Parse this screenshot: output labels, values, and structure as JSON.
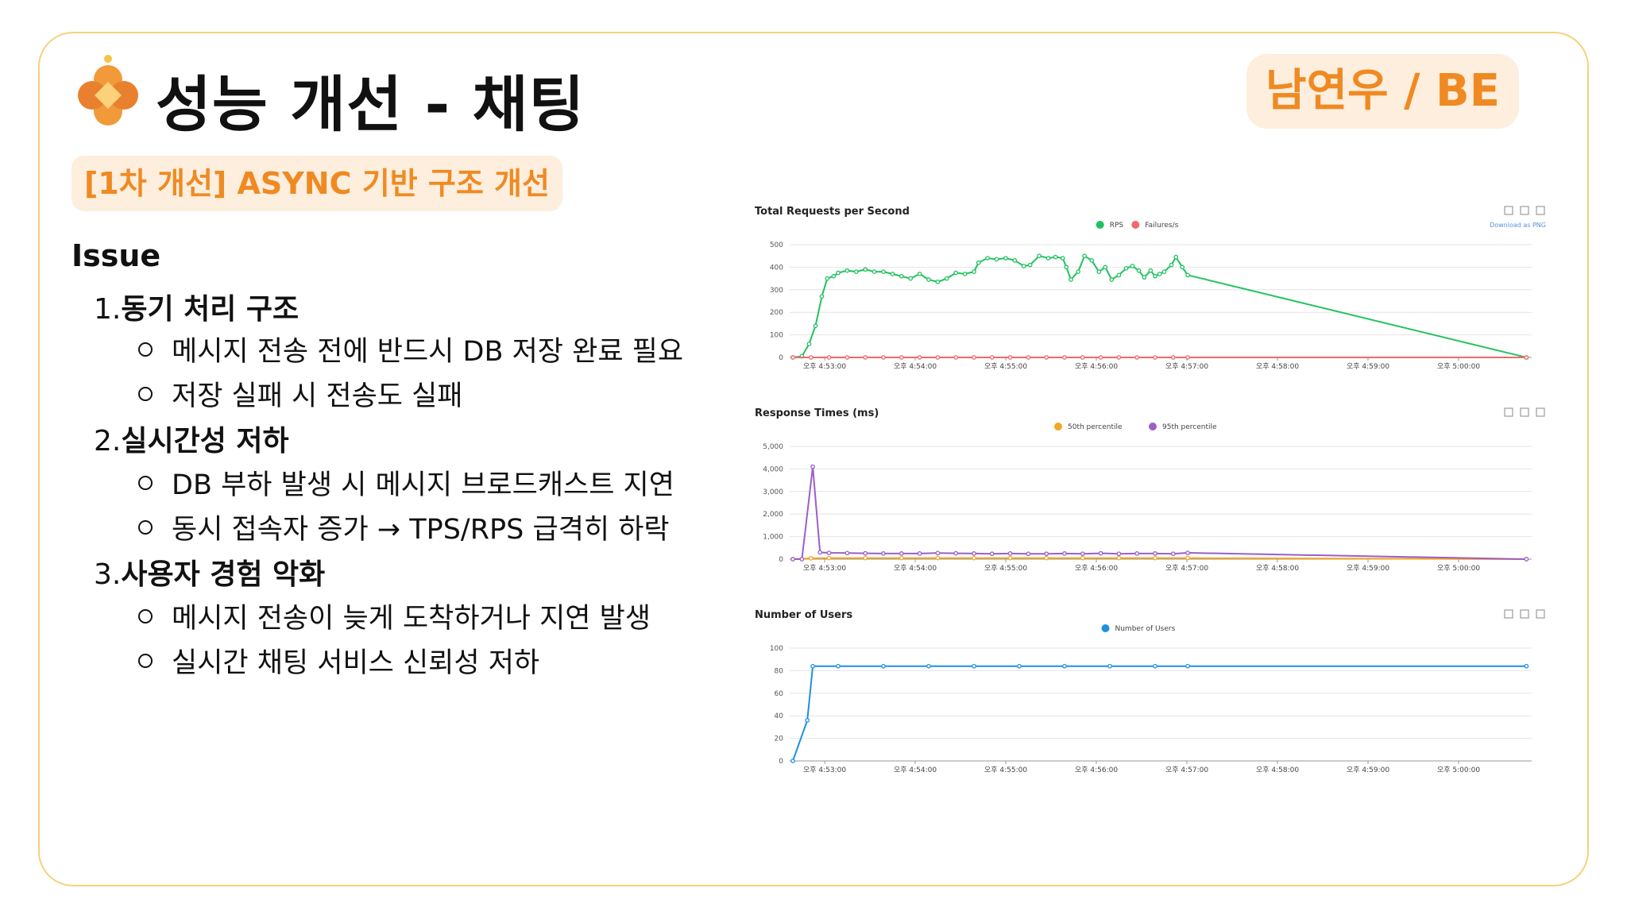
{
  "header": {
    "title": "성능 개선 - 채팅",
    "author": "남연우 / BE"
  },
  "subtitle": "[1차 개선] ASYNC 기반 구조 개선",
  "issue": {
    "heading": "Issue",
    "items": [
      {
        "num": "1.",
        "text": "동기 처리 구조",
        "bullets": [
          "메시지 전송 전에 반드시 DB 저장 완료 필요",
          "저장 실패 시 전송도 실패"
        ]
      },
      {
        "num": "2.",
        "text": "실시간성 저하",
        "bullets": [
          "DB 부하 발생 시 메시지 브로드캐스트 지연",
          "동시 접속자 증가 → TPS/RPS 급격히 하락"
        ]
      },
      {
        "num": "3.",
        "text": "사용자 경험 악화",
        "bullets": [
          "메시지 전송이 늦게 도착하거나 지연 발생",
          "실시간 채팅 서비스 신뢰성 저하"
        ]
      }
    ]
  },
  "chart_data": [
    {
      "type": "line",
      "title": "Total Requests per Second",
      "download_label": "Download as PNG",
      "x": [
        "오후 4:53:00",
        "오후 4:54:00",
        "오후 4:55:00",
        "오후 4:56:00",
        "오후 4:57:00",
        "오후 4:58:00",
        "오후 4:59:00",
        "오후 5:00:00"
      ],
      "ylim": [
        0,
        500
      ],
      "yticks": [
        0,
        100,
        200,
        300,
        400,
        500
      ],
      "series": [
        {
          "name": "RPS",
          "color": "#21c25e",
          "points": [
            [
              0,
              0
            ],
            [
              0.1,
              5
            ],
            [
              0.18,
              60
            ],
            [
              0.25,
              140
            ],
            [
              0.32,
              270
            ],
            [
              0.38,
              350
            ],
            [
              0.45,
              360
            ],
            [
              0.5,
              375
            ],
            [
              0.6,
              385
            ],
            [
              0.7,
              380
            ],
            [
              0.8,
              390
            ],
            [
              0.9,
              380
            ],
            [
              1.0,
              380
            ],
            [
              1.1,
              370
            ],
            [
              1.2,
              360
            ],
            [
              1.3,
              350
            ],
            [
              1.4,
              370
            ],
            [
              1.5,
              345
            ],
            [
              1.6,
              335
            ],
            [
              1.7,
              350
            ],
            [
              1.8,
              375
            ],
            [
              1.9,
              370
            ],
            [
              2.0,
              380
            ],
            [
              2.05,
              420
            ],
            [
              2.15,
              440
            ],
            [
              2.25,
              435
            ],
            [
              2.35,
              440
            ],
            [
              2.45,
              430
            ],
            [
              2.55,
              405
            ],
            [
              2.62,
              410
            ],
            [
              2.72,
              450
            ],
            [
              2.82,
              440
            ],
            [
              2.9,
              445
            ],
            [
              2.98,
              440
            ],
            [
              3.02,
              400
            ],
            [
              3.07,
              345
            ],
            [
              3.15,
              380
            ],
            [
              3.22,
              450
            ],
            [
              3.3,
              430
            ],
            [
              3.38,
              380
            ],
            [
              3.45,
              400
            ],
            [
              3.52,
              345
            ],
            [
              3.6,
              365
            ],
            [
              3.68,
              395
            ],
            [
              3.75,
              405
            ],
            [
              3.82,
              385
            ],
            [
              3.88,
              355
            ],
            [
              3.95,
              385
            ],
            [
              4.0,
              360
            ],
            [
              4.05,
              370
            ],
            [
              4.1,
              380
            ],
            [
              4.18,
              410
            ],
            [
              4.23,
              445
            ],
            [
              4.3,
              400
            ],
            [
              4.36,
              365
            ],
            [
              8.1,
              0
            ]
          ]
        },
        {
          "name": "Failures/s",
          "color": "#ef6a6a",
          "points": [
            [
              0,
              0
            ],
            [
              0.2,
              0
            ],
            [
              0.4,
              0
            ],
            [
              0.6,
              0
            ],
            [
              0.8,
              0
            ],
            [
              1.0,
              0
            ],
            [
              1.2,
              0
            ],
            [
              1.4,
              0
            ],
            [
              1.6,
              0
            ],
            [
              1.8,
              0
            ],
            [
              2.0,
              0
            ],
            [
              2.2,
              0
            ],
            [
              2.4,
              0
            ],
            [
              2.6,
              0
            ],
            [
              2.8,
              0
            ],
            [
              3.0,
              0
            ],
            [
              3.2,
              0
            ],
            [
              3.4,
              0
            ],
            [
              3.6,
              0
            ],
            [
              3.8,
              0
            ],
            [
              4.0,
              0
            ],
            [
              4.2,
              0
            ],
            [
              4.36,
              0
            ],
            [
              8.1,
              0
            ]
          ]
        }
      ]
    },
    {
      "type": "line",
      "title": "Response Times (ms)",
      "x": [
        "오후 4:53:00",
        "오후 4:54:00",
        "오후 4:55:00",
        "오후 4:56:00",
        "오후 4:57:00",
        "오후 4:58:00",
        "오후 4:59:00",
        "오후 5:00:00"
      ],
      "ylim": [
        0,
        5000
      ],
      "yticks": [
        0,
        1000,
        2000,
        3000,
        4000,
        5000
      ],
      "series": [
        {
          "name": "50th percentile",
          "color": "#f5a623",
          "points": [
            [
              0,
              0
            ],
            [
              0.2,
              40
            ],
            [
              0.4,
              50
            ],
            [
              0.8,
              50
            ],
            [
              1.2,
              50
            ],
            [
              1.6,
              50
            ],
            [
              2.0,
              50
            ],
            [
              2.4,
              50
            ],
            [
              2.8,
              50
            ],
            [
              3.2,
              50
            ],
            [
              3.6,
              50
            ],
            [
              4.0,
              50
            ],
            [
              4.36,
              50
            ],
            [
              8.1,
              0
            ]
          ]
        },
        {
          "name": "95th percentile",
          "color": "#9b5fc7",
          "points": [
            [
              0,
              0
            ],
            [
              0.1,
              0
            ],
            [
              0.22,
              4100
            ],
            [
              0.3,
              300
            ],
            [
              0.4,
              280
            ],
            [
              0.6,
              270
            ],
            [
              0.8,
              260
            ],
            [
              1.0,
              250
            ],
            [
              1.2,
              250
            ],
            [
              1.4,
              250
            ],
            [
              1.6,
              270
            ],
            [
              1.8,
              260
            ],
            [
              2.0,
              250
            ],
            [
              2.2,
              240
            ],
            [
              2.4,
              250
            ],
            [
              2.6,
              240
            ],
            [
              2.8,
              240
            ],
            [
              3.0,
              250
            ],
            [
              3.2,
              240
            ],
            [
              3.4,
              260
            ],
            [
              3.6,
              240
            ],
            [
              3.8,
              250
            ],
            [
              4.0,
              250
            ],
            [
              4.2,
              240
            ],
            [
              4.36,
              280
            ],
            [
              8.1,
              0
            ]
          ]
        }
      ]
    },
    {
      "type": "line",
      "title": "Number of Users",
      "x": [
        "오후 4:53:00",
        "오후 4:54:00",
        "오후 4:55:00",
        "오후 4:56:00",
        "오후 4:57:00",
        "오후 4:58:00",
        "오후 4:59:00",
        "오후 5:00:00"
      ],
      "ylim": [
        0,
        100
      ],
      "yticks": [
        0,
        20,
        40,
        60,
        80,
        100
      ],
      "series": [
        {
          "name": "Number of Users",
          "color": "#1e90e0",
          "points": [
            [
              0,
              0
            ],
            [
              0.16,
              36
            ],
            [
              0.22,
              84
            ],
            [
              0.5,
              84
            ],
            [
              1.0,
              84
            ],
            [
              1.5,
              84
            ],
            [
              2.0,
              84
            ],
            [
              2.5,
              84
            ],
            [
              3.0,
              84
            ],
            [
              3.5,
              84
            ],
            [
              4.0,
              84
            ],
            [
              4.36,
              84
            ],
            [
              8.1,
              84
            ]
          ]
        }
      ]
    }
  ]
}
